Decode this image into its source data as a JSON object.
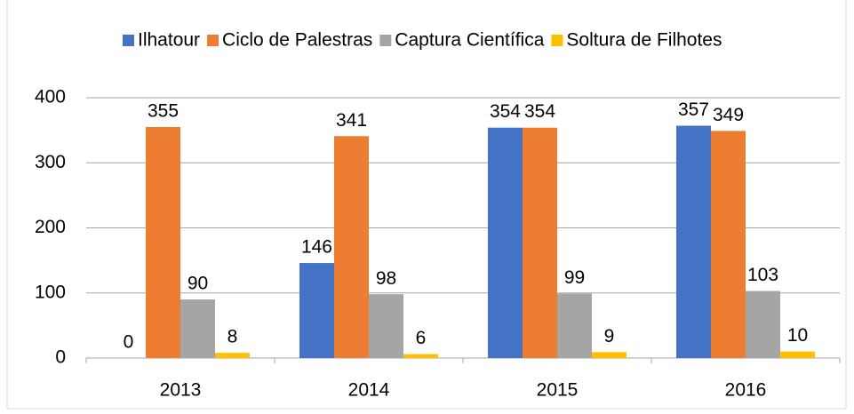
{
  "chart_data": {
    "type": "bar",
    "categories": [
      "2013",
      "2014",
      "2015",
      "2016"
    ],
    "series": [
      {
        "name": "Ilhatour",
        "color": "#4472c4",
        "values": [
          0,
          146,
          354,
          357
        ]
      },
      {
        "name": "Ciclo de Palestras",
        "color": "#ed7d31",
        "values": [
          355,
          341,
          354,
          349
        ]
      },
      {
        "name": "Captura Científica",
        "color": "#a5a5a5",
        "values": [
          90,
          98,
          99,
          103
        ]
      },
      {
        "name": "Soltura de Filhotes",
        "color": "#ffc000",
        "values": [
          8,
          6,
          9,
          10
        ]
      }
    ],
    "ylim": [
      0,
      400
    ],
    "yticks": [
      0,
      100,
      200,
      300,
      400
    ],
    "grid": true,
    "legend": "top"
  }
}
